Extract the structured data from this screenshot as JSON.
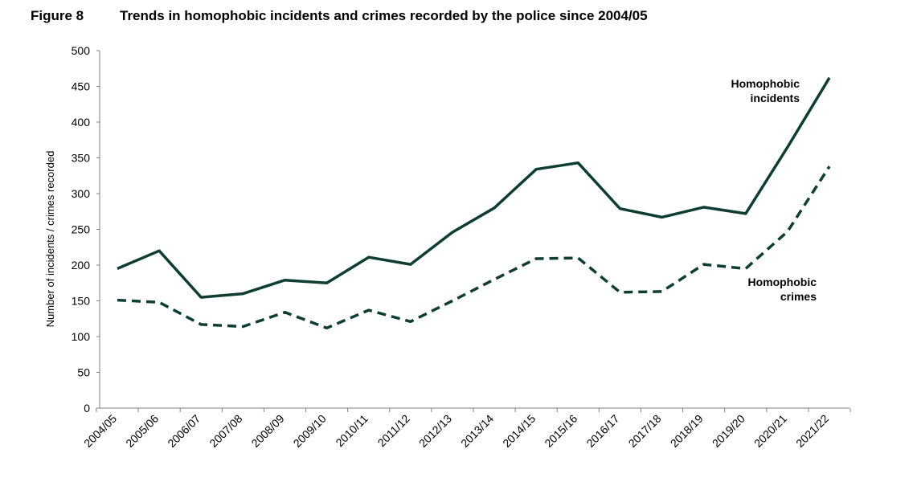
{
  "figure": {
    "number": "Figure 8",
    "title": "Trends in homophobic incidents and crimes recorded by the police since 2004/05"
  },
  "chart_data": {
    "type": "line",
    "title": "Trends in homophobic incidents and crimes recorded by the police since 2004/05",
    "xlabel": "",
    "ylabel": "Number of incidents / crimes recorded",
    "ylim": [
      0,
      500
    ],
    "yticks": [
      0,
      50,
      100,
      150,
      200,
      250,
      300,
      350,
      400,
      450,
      500
    ],
    "grid": false,
    "categories": [
      "2004/05",
      "2005/06",
      "2006/07",
      "2007/08",
      "2008/09",
      "2009/10",
      "2010/11",
      "2011/12",
      "2012/13",
      "2013/14",
      "2014/15",
      "2015/16",
      "2016/17",
      "2017/18",
      "2018/19",
      "2019/20",
      "2020/21",
      "2021/22"
    ],
    "series": [
      {
        "name": "Homophobic incidents",
        "label_lines": [
          "Homophobic",
          "incidents"
        ],
        "style": "solid",
        "color": "#0f3d33",
        "values": [
          195,
          220,
          155,
          160,
          179,
          175,
          211,
          201,
          246,
          280,
          334,
          343,
          279,
          267,
          281,
          272,
          365,
          462
        ]
      },
      {
        "name": "Homophobic crimes",
        "label_lines": [
          "Homophobic",
          "crimes"
        ],
        "style": "dashed",
        "color": "#0f3d33",
        "values": [
          151,
          148,
          117,
          114,
          134,
          112,
          137,
          121,
          150,
          180,
          209,
          210,
          162,
          163,
          201,
          195,
          247,
          338
        ]
      }
    ]
  }
}
